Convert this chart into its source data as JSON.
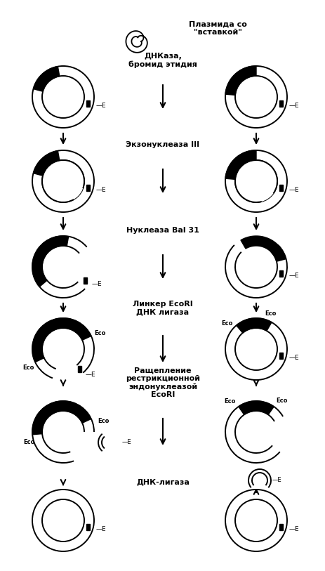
{
  "bg_color": "#ffffff",
  "steps": [
    {
      "label": "ДНКаза,\nбромид этидия"
    },
    {
      "label": "Экзонуклеаза III"
    },
    {
      "label": "Нуклеаза Bal 31"
    },
    {
      "label": "Линкер EcoRI\nДНК лигаза"
    },
    {
      "label": "Ращепление\nрестрикционной\nэндонуклеазой\nEcoRI"
    },
    {
      "label": "ДНК-лигаза"
    }
  ],
  "plasmid_label": "Плазмида со\n\"вставкой\""
}
